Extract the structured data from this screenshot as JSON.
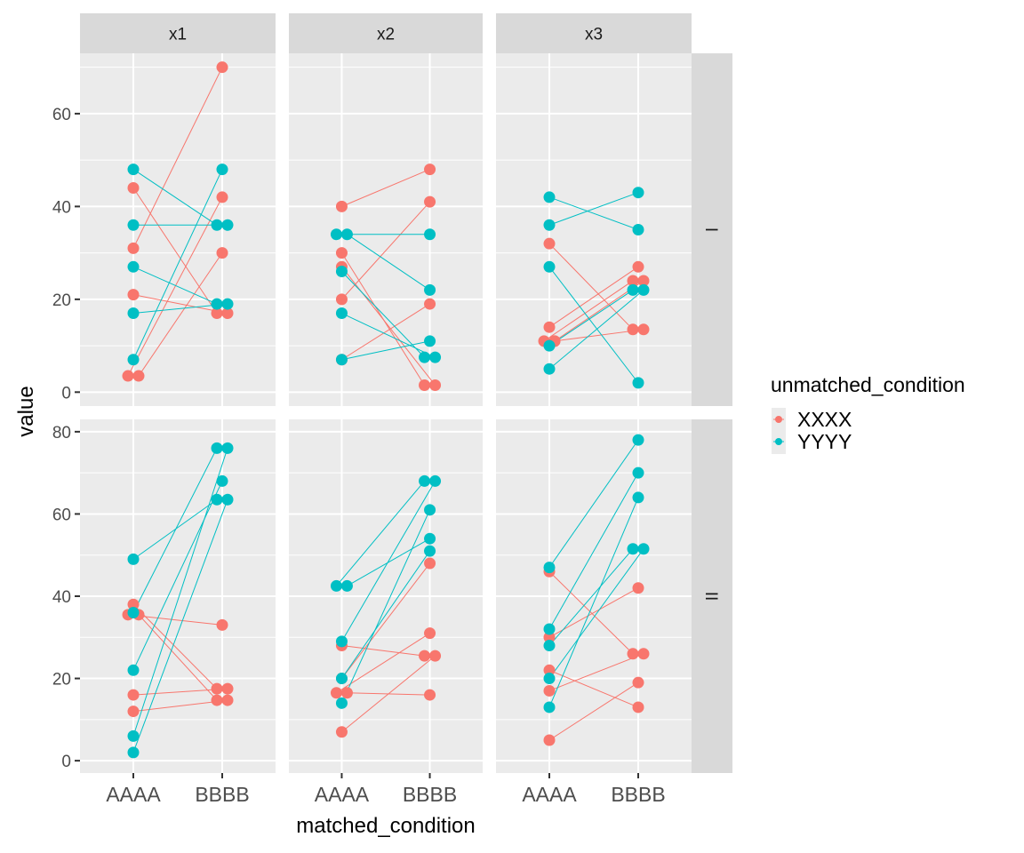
{
  "chart_data": {
    "type": "line",
    "subtype": "faceted paired dot plot (facet_grid)",
    "xlabel": "matched_condition",
    "ylabel": "value",
    "categories": [
      "AAAA",
      "BBBB"
    ],
    "facet_cols": [
      "x1",
      "x2",
      "x3"
    ],
    "facet_rows": [
      "I",
      "II"
    ],
    "row_ylims": {
      "I": [
        -3,
        73
      ],
      "II": [
        -3,
        83
      ]
    },
    "row_yticks": {
      "I": [
        0,
        20,
        40,
        60
      ],
      "II": [
        0,
        20,
        40,
        60,
        80
      ]
    },
    "grid": true,
    "legend": {
      "title": "unmatched_condition",
      "position": "right",
      "entries": [
        {
          "name": "XXXX",
          "color": "#F8766D"
        },
        {
          "name": "YYYY",
          "color": "#00BFC4"
        }
      ]
    },
    "panels": [
      {
        "row": "I",
        "col": "x1",
        "pairs": [
          {
            "group": "XXXX",
            "AAAA": 44,
            "BBBB": 17
          },
          {
            "group": "XXXX",
            "AAAA": 31,
            "BBBB": 70
          },
          {
            "group": "XXXX",
            "AAAA": 21,
            "BBBB": 17
          },
          {
            "group": "XXXX",
            "AAAA": 3.5,
            "BBBB": 42
          },
          {
            "group": "XXXX",
            "AAAA": 3.5,
            "BBBB": 30
          },
          {
            "group": "YYYY",
            "AAAA": 48,
            "BBBB": 36
          },
          {
            "group": "YYYY",
            "AAAA": 36,
            "BBBB": 36
          },
          {
            "group": "YYYY",
            "AAAA": 27,
            "BBBB": 19
          },
          {
            "group": "YYYY",
            "AAAA": 17,
            "BBBB": 19
          },
          {
            "group": "YYYY",
            "AAAA": 7,
            "BBBB": 48
          }
        ]
      },
      {
        "row": "I",
        "col": "x2",
        "pairs": [
          {
            "group": "XXXX",
            "AAAA": 40,
            "BBBB": 48
          },
          {
            "group": "XXXX",
            "AAAA": 30,
            "BBBB": 1.5
          },
          {
            "group": "XXXX",
            "AAAA": 27,
            "BBBB": 1.5
          },
          {
            "group": "XXXX",
            "AAAA": 20,
            "BBBB": 41
          },
          {
            "group": "XXXX",
            "AAAA": 7,
            "BBBB": 19
          },
          {
            "group": "YYYY",
            "AAAA": 34,
            "BBBB": 34
          },
          {
            "group": "YYYY",
            "AAAA": 34,
            "BBBB": 22
          },
          {
            "group": "YYYY",
            "AAAA": 26,
            "BBBB": 7.5
          },
          {
            "group": "YYYY",
            "AAAA": 17,
            "BBBB": 7.5
          },
          {
            "group": "YYYY",
            "AAAA": 7,
            "BBBB": 11
          }
        ]
      },
      {
        "row": "I",
        "col": "x3",
        "pairs": [
          {
            "group": "XXXX",
            "AAAA": 32,
            "BBBB": 13.5
          },
          {
            "group": "XXXX",
            "AAAA": 14,
            "BBBB": 27
          },
          {
            "group": "XXXX",
            "AAAA": 11,
            "BBBB": 24
          },
          {
            "group": "XXXX",
            "AAAA": 11,
            "BBBB": 24
          },
          {
            "group": "XXXX",
            "AAAA": 11,
            "BBBB": 13.5
          },
          {
            "group": "YYYY",
            "AAAA": 42,
            "BBBB": 35
          },
          {
            "group": "YYYY",
            "AAAA": 36,
            "BBBB": 43
          },
          {
            "group": "YYYY",
            "AAAA": 27,
            "BBBB": 2
          },
          {
            "group": "YYYY",
            "AAAA": 10,
            "BBBB": 22
          },
          {
            "group": "YYYY",
            "AAAA": 5,
            "BBBB": 22
          }
        ]
      },
      {
        "row": "II",
        "col": "x1",
        "pairs": [
          {
            "group": "XXXX",
            "AAAA": 38,
            "BBBB": 17.5
          },
          {
            "group": "XXXX",
            "AAAA": 35.5,
            "BBBB": 33
          },
          {
            "group": "XXXX",
            "AAAA": 35.5,
            "BBBB": 14.7
          },
          {
            "group": "XXXX",
            "AAAA": 16,
            "BBBB": 17.5
          },
          {
            "group": "XXXX",
            "AAAA": 12,
            "BBBB": 14.7
          },
          {
            "group": "YYYY",
            "AAAA": 49,
            "BBBB": 63.5
          },
          {
            "group": "YYYY",
            "AAAA": 36,
            "BBBB": 76
          },
          {
            "group": "YYYY",
            "AAAA": 22,
            "BBBB": 68
          },
          {
            "group": "YYYY",
            "AAAA": 6,
            "BBBB": 76
          },
          {
            "group": "YYYY",
            "AAAA": 2,
            "BBBB": 63.5
          }
        ]
      },
      {
        "row": "II",
        "col": "x2",
        "pairs": [
          {
            "group": "XXXX",
            "AAAA": 28,
            "BBBB": 25.5
          },
          {
            "group": "XXXX",
            "AAAA": 16.5,
            "BBBB": 31
          },
          {
            "group": "XXXX",
            "AAAA": 16.5,
            "BBBB": 16
          },
          {
            "group": "XXXX",
            "AAAA": 20,
            "BBBB": 48
          },
          {
            "group": "XXXX",
            "AAAA": 7,
            "BBBB": 25.5
          },
          {
            "group": "YYYY",
            "AAAA": 42.5,
            "BBBB": 68
          },
          {
            "group": "YYYY",
            "AAAA": 42.5,
            "BBBB": 54
          },
          {
            "group": "YYYY",
            "AAAA": 29,
            "BBBB": 68
          },
          {
            "group": "YYYY",
            "AAAA": 20,
            "BBBB": 51
          },
          {
            "group": "YYYY",
            "AAAA": 14,
            "BBBB": 61
          }
        ]
      },
      {
        "row": "II",
        "col": "x3",
        "pairs": [
          {
            "group": "XXXX",
            "AAAA": 46,
            "BBBB": 26
          },
          {
            "group": "XXXX",
            "AAAA": 30,
            "BBBB": 42
          },
          {
            "group": "XXXX",
            "AAAA": 22,
            "BBBB": 13
          },
          {
            "group": "XXXX",
            "AAAA": 17,
            "BBBB": 26
          },
          {
            "group": "XXXX",
            "AAAA": 5,
            "BBBB": 19
          },
          {
            "group": "YYYY",
            "AAAA": 47,
            "BBBB": 78
          },
          {
            "group": "YYYY",
            "AAAA": 32,
            "BBBB": 70
          },
          {
            "group": "YYYY",
            "AAAA": 28,
            "BBBB": 51.5
          },
          {
            "group": "YYYY",
            "AAAA": 20,
            "BBBB": 51.5
          },
          {
            "group": "YYYY",
            "AAAA": 13,
            "BBBB": 64
          }
        ]
      }
    ]
  }
}
